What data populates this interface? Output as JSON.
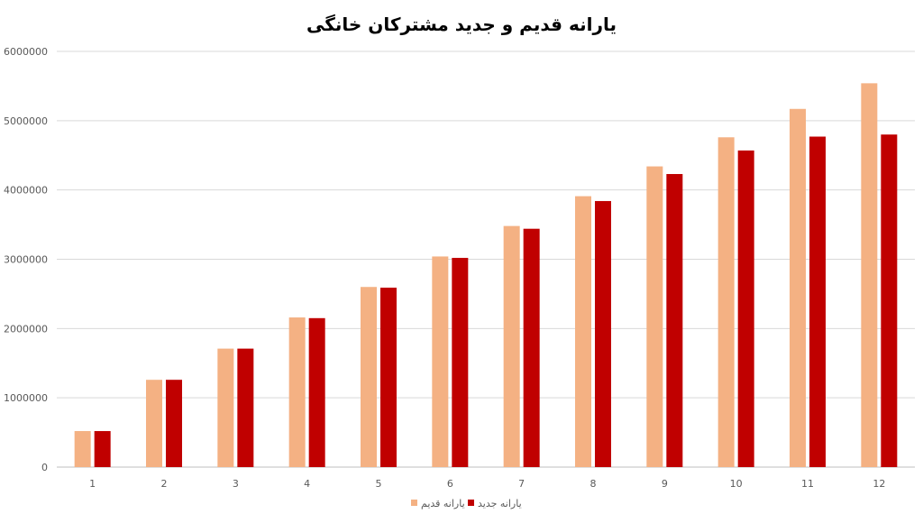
{
  "chart_data": {
    "type": "bar",
    "title": "یارانه قدیم و جدید مشترکان خانگی",
    "xlabel": "",
    "ylabel": "",
    "categories": [
      "1",
      "2",
      "3",
      "4",
      "5",
      "6",
      "7",
      "8",
      "9",
      "10",
      "11",
      "12"
    ],
    "series": [
      {
        "name": "یارانه قدیم",
        "color": "#F4B183",
        "values": [
          520000,
          1260000,
          1710000,
          2160000,
          2600000,
          3040000,
          3480000,
          3910000,
          4340000,
          4760000,
          5170000,
          5540000
        ]
      },
      {
        "name": "یارانه جدید",
        "color": "#C00000",
        "values": [
          520000,
          1260000,
          1710000,
          2150000,
          2590000,
          3020000,
          3440000,
          3840000,
          4230000,
          4570000,
          4770000,
          4800000
        ]
      }
    ],
    "ylim": [
      0,
      6000000
    ],
    "yticks": [
      "0",
      "1000000",
      "2000000",
      "3000000",
      "4000000",
      "5000000",
      "6000000"
    ],
    "grid": true,
    "legend_position": "bottom"
  }
}
